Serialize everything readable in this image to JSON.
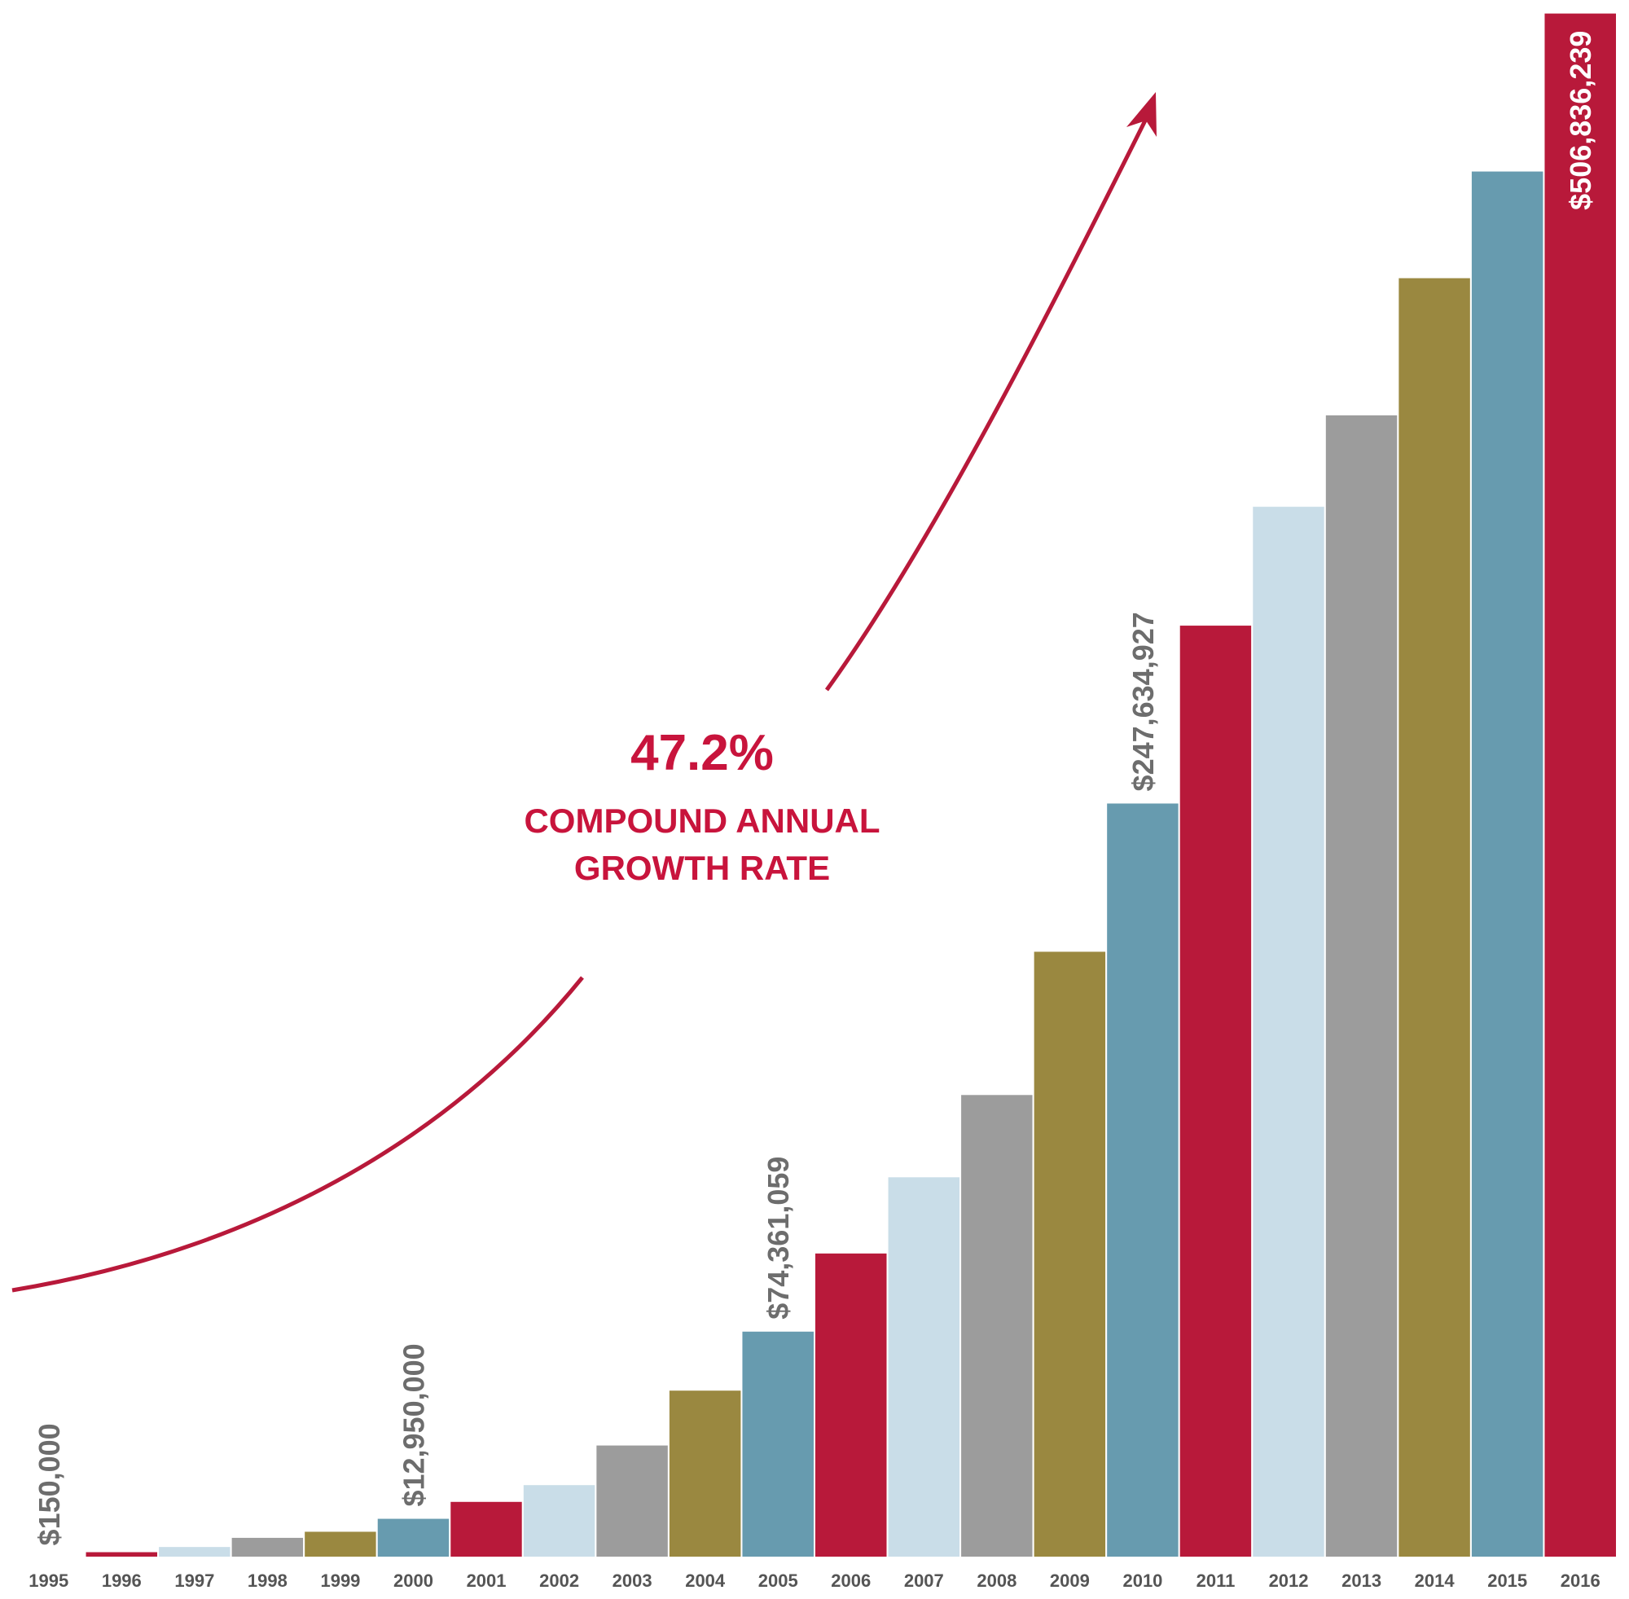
{
  "chart_data": {
    "type": "bar",
    "annotation": {
      "headline": "47.2%",
      "lines": [
        "COMPOUND ANNUAL",
        "GROWTH RATE"
      ]
    },
    "categories": [
      "1995",
      "1996",
      "1997",
      "1998",
      "1999",
      "2000",
      "2001",
      "2002",
      "2003",
      "2004",
      "2005",
      "2006",
      "2007",
      "2008",
      "2009",
      "2010",
      "2011",
      "2012",
      "2013",
      "2014",
      "2015",
      "2016"
    ],
    "values": [
      150000,
      2000000,
      3700000,
      6700000,
      8700000,
      12950000,
      18500000,
      24000000,
      37000000,
      55000000,
      74361059,
      100000000,
      125000000,
      152000000,
      199000000,
      247634927,
      306000000,
      345000000,
      375000000,
      420000000,
      455000000,
      506836239
    ],
    "value_labels": [
      "$150,000",
      null,
      null,
      null,
      null,
      "$12,950,000",
      null,
      null,
      null,
      null,
      "$74,361,059",
      null,
      null,
      null,
      null,
      "$247,634,927",
      null,
      null,
      null,
      null,
      null,
      "$506,836,239"
    ],
    "colors": [
      "#b8193a",
      "#b8193a",
      "#c9dde8",
      "#9c9c9c",
      "#9a8840",
      "#679baf",
      "#b8193a",
      "#c9dde8",
      "#9c9c9c",
      "#9a8840",
      "#679baf",
      "#b8193a",
      "#c9dde8",
      "#9c9c9c",
      "#9a8840",
      "#679baf",
      "#b8193a",
      "#c9dde8",
      "#9c9c9c",
      "#9a8840",
      "#679baf",
      "#b8193a"
    ],
    "ylim": [
      0,
      507000000
    ]
  }
}
